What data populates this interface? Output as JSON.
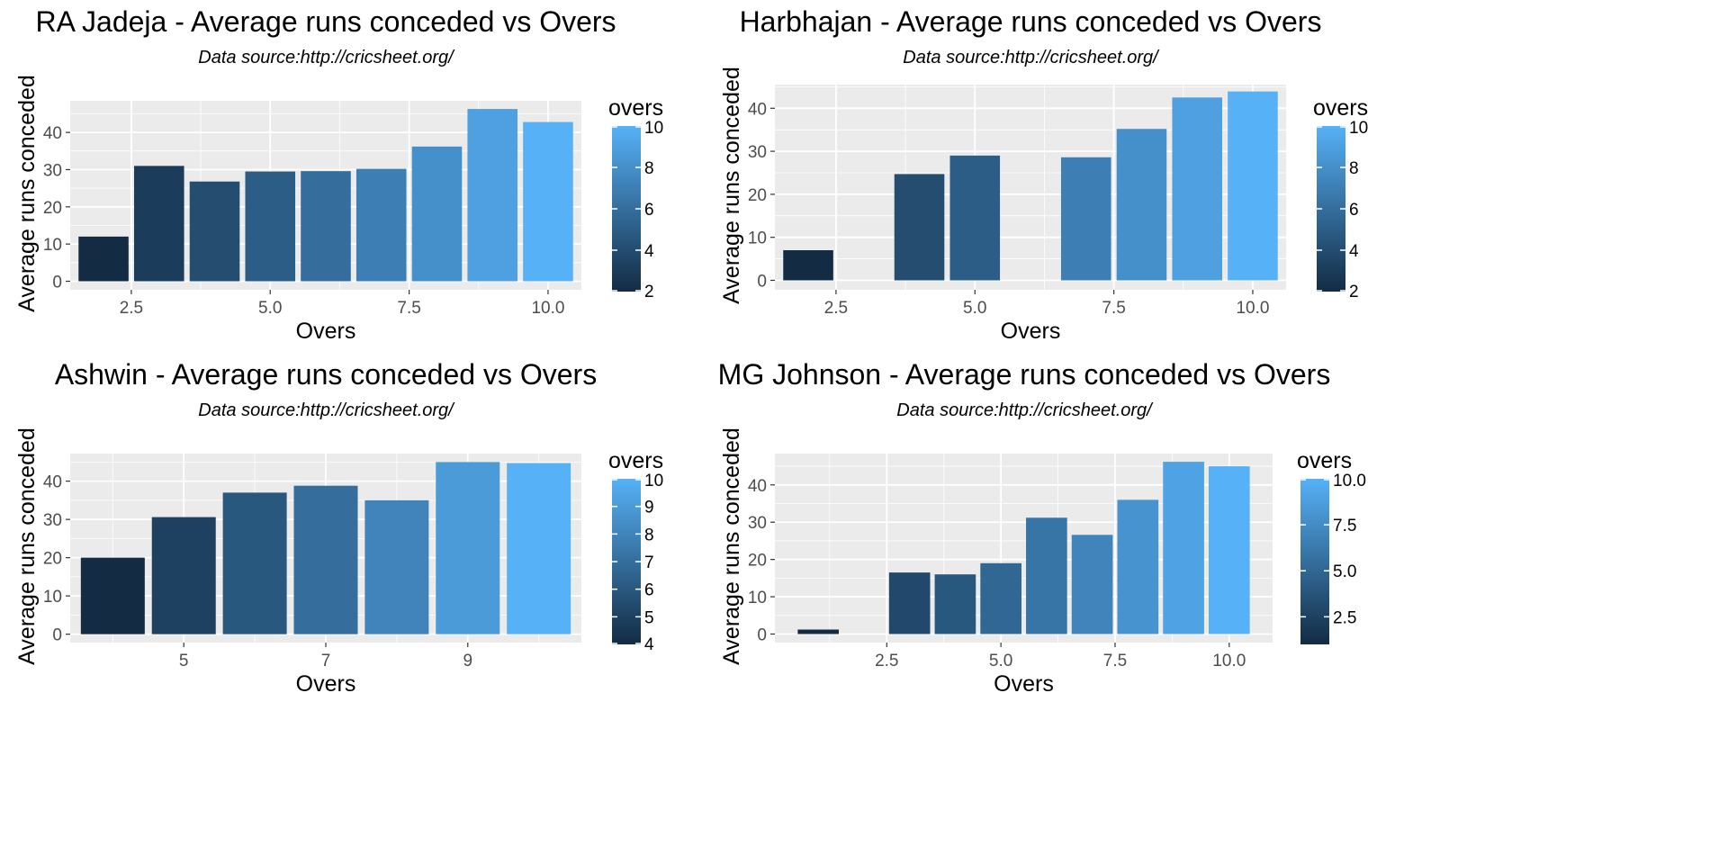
{
  "chart_data": [
    {
      "type": "bar",
      "title": "RA Jadeja - Average runs conceded vs Overs",
      "subtitle": "Data source:http://cricsheet.org/",
      "xlabel": "Overs",
      "ylabel": "Average runs conceded",
      "xlim": [
        1.4,
        10.6
      ],
      "ylim": [
        -2.3,
        48.5
      ],
      "x": [
        2,
        3,
        4,
        5,
        6,
        7,
        8,
        9,
        10
      ],
      "values": [
        12,
        31,
        26.8,
        29.5,
        29.6,
        30.2,
        36.2,
        46.3,
        42.8
      ],
      "xticks": [
        2.5,
        5.0,
        7.5,
        10.0
      ],
      "xtick_labels": [
        "2.5",
        "5.0",
        "7.5",
        "10.0"
      ],
      "yticks": [
        0,
        10,
        20,
        30,
        40
      ],
      "ytick_labels": [
        "0",
        "10",
        "20",
        "30",
        "40"
      ],
      "legend": {
        "title": "overs",
        "range": [
          2,
          10
        ],
        "ticks": [
          2,
          4,
          6,
          8,
          10
        ],
        "tick_labels": [
          "2",
          "4",
          "6",
          "8",
          "10"
        ]
      }
    },
    {
      "type": "bar",
      "title": "Harbhajan - Average runs conceded vs Overs",
      "subtitle": "Data source:http://cricsheet.org/",
      "xlabel": "Overs",
      "ylabel": "Average runs conceded",
      "xlim": [
        1.4,
        10.6
      ],
      "ylim": [
        -2.2,
        45.5
      ],
      "x": [
        2,
        4,
        5,
        7,
        8,
        9,
        10
      ],
      "values": [
        7,
        24.7,
        29,
        28.6,
        35.2,
        42.5,
        43.9
      ],
      "xticks": [
        2.5,
        5.0,
        7.5,
        10.0
      ],
      "xtick_labels": [
        "2.5",
        "5.0",
        "7.5",
        "10.0"
      ],
      "yticks": [
        0,
        10,
        20,
        30,
        40
      ],
      "ytick_labels": [
        "0",
        "10",
        "20",
        "30",
        "40"
      ],
      "legend": {
        "title": "overs",
        "range": [
          2,
          10
        ],
        "ticks": [
          2,
          4,
          6,
          8,
          10
        ],
        "tick_labels": [
          "2",
          "4",
          "6",
          "8",
          "10"
        ]
      }
    },
    {
      "type": "bar",
      "title": "Ashwin - Average runs conceded vs Overs",
      "subtitle": "Data source:http://cricsheet.org/",
      "xlabel": "Overs",
      "ylabel": "Average runs conceded",
      "xlim": [
        3.4,
        10.6
      ],
      "ylim": [
        -2.2,
        47.2
      ],
      "x": [
        4,
        5,
        6,
        7,
        8,
        9,
        10
      ],
      "values": [
        20,
        30.6,
        37,
        38.8,
        35,
        45,
        44.7
      ],
      "xticks": [
        5,
        7,
        9
      ],
      "xtick_labels": [
        "5",
        "7",
        "9"
      ],
      "yticks": [
        0,
        10,
        20,
        30,
        40
      ],
      "ytick_labels": [
        "0",
        "10",
        "20",
        "30",
        "40"
      ],
      "legend": {
        "title": "overs",
        "range": [
          4,
          10
        ],
        "ticks": [
          4,
          5,
          6,
          7,
          8,
          9,
          10
        ],
        "tick_labels": [
          "4",
          "5",
          "6",
          "7",
          "8",
          "9",
          "10"
        ]
      }
    },
    {
      "type": "bar",
      "title": "MG Johnson - Average runs conceded vs Overs",
      "subtitle": "Data source:http://cricsheet.org/",
      "xlabel": "Overs",
      "ylabel": "Average runs conceded",
      "xlim": [
        0.05,
        10.95
      ],
      "ylim": [
        -2.3,
        48.4
      ],
      "x": [
        1,
        3,
        4,
        5,
        6,
        7,
        8,
        9,
        10
      ],
      "values": [
        1.2,
        16.5,
        16,
        19,
        31.2,
        26.6,
        36,
        46.2,
        45
      ],
      "xticks": [
        2.5,
        5.0,
        7.5,
        10.0
      ],
      "xtick_labels": [
        "2.5",
        "5.0",
        "7.5",
        "10.0"
      ],
      "yticks": [
        0,
        10,
        20,
        30,
        40
      ],
      "ytick_labels": [
        "0",
        "10",
        "20",
        "30",
        "40"
      ],
      "legend": {
        "title": "overs",
        "range": [
          1,
          10
        ],
        "ticks": [
          2.5,
          5.0,
          7.5,
          10.0
        ],
        "tick_labels": [
          "2.5",
          "5.0",
          "7.5",
          "10.0"
        ]
      }
    }
  ],
  "colors": {
    "low": "#132b43",
    "high": "#56b1f7",
    "panel_background": "#ebebeb",
    "grid": "#ffffff",
    "tick_text": "#4d4d4d"
  }
}
